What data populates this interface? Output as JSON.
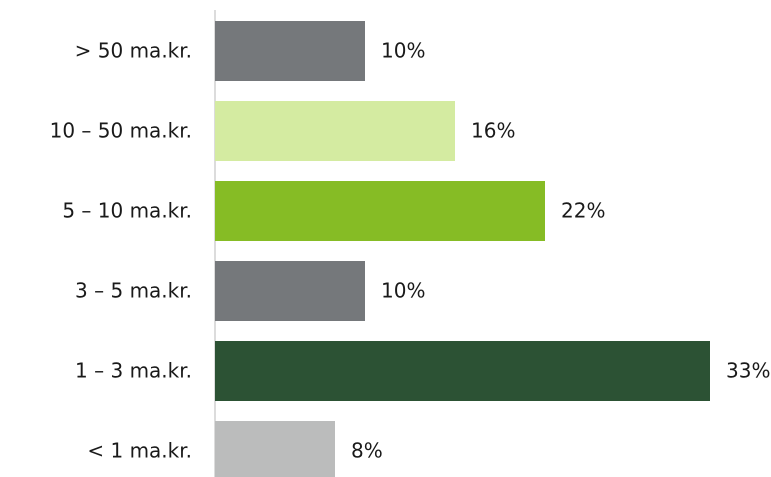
{
  "chart_data": {
    "type": "hbar",
    "categories": [
      "> 50 ma.kr.",
      "10 – 50 ma.kr.",
      "5 – 10 ma.kr.",
      "3 – 5 ma.kr.",
      "1 – 3 ma.kr.",
      "< 1 ma.kr."
    ],
    "values": [
      10,
      16,
      22,
      10,
      33,
      8
    ],
    "value_labels": [
      "10%",
      "16%",
      "22%",
      "10%",
      "33%",
      "8%"
    ],
    "colors": [
      "#75787b",
      "#d4eba1",
      "#86bc25",
      "#75787b",
      "#2c5234",
      "#bbbcbc"
    ]
  }
}
